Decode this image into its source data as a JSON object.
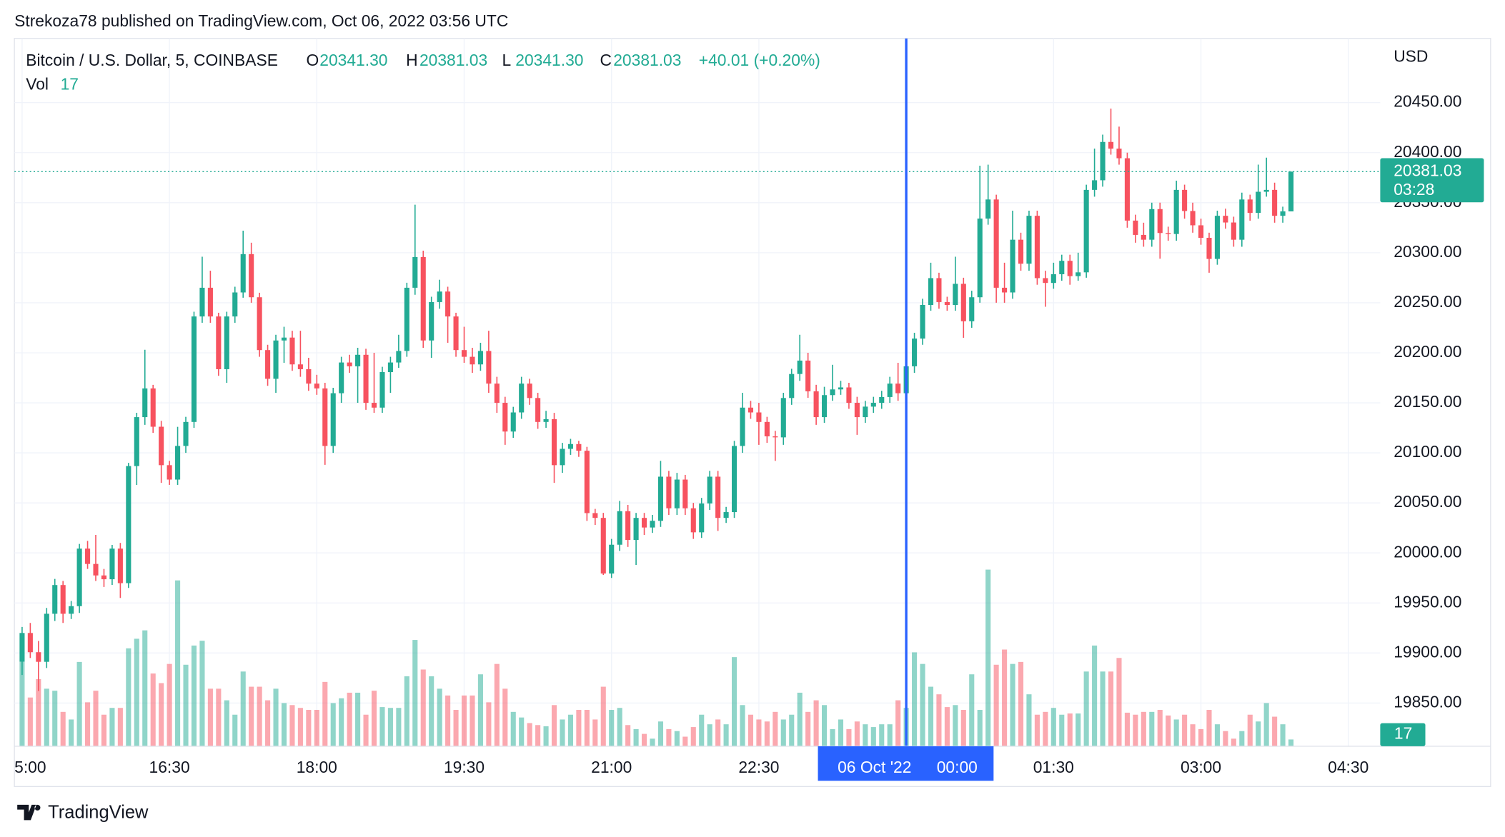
{
  "header": {
    "byline": "Strekoza78 published on TradingView.com, Oct 06, 2022 03:56 UTC"
  },
  "legend": {
    "symbol": "Bitcoin / U.S. Dollar, 5, COINBASE",
    "items": [
      {
        "key": "O",
        "value": "20341.30"
      },
      {
        "key": "H",
        "value": "20381.03"
      },
      {
        "key": "L",
        "value": "20341.30"
      },
      {
        "key": "C",
        "value": "20381.03"
      }
    ],
    "change": "+40.01 (+0.20%)",
    "vol_key": "Vol"
  },
  "footer": {
    "brand": "TradingView"
  },
  "chart_data": {
    "type": "candlestick",
    "currency": "USD",
    "up_color": "#22ab94",
    "down_color": "#f7525f",
    "grid": true,
    "xlim": [
      -0.94,
      165.9
    ],
    "ylim": [
      19806.8,
      20514.2
    ],
    "vol_ylim": [
      0,
      480
    ],
    "xticks": [
      {
        "value": 0,
        "label": "5:00"
      },
      {
        "value": 18,
        "label": "16:30"
      },
      {
        "value": 36,
        "label": "18:00"
      },
      {
        "value": 54,
        "label": "19:30"
      },
      {
        "value": 72,
        "label": "21:00"
      },
      {
        "value": 90,
        "label": "22:30"
      },
      {
        "value": 108,
        "label": "00:00"
      },
      {
        "value": 126,
        "label": "01:30"
      },
      {
        "value": 144,
        "label": "03:00"
      },
      {
        "value": 162,
        "label": "04:30"
      }
    ],
    "yticks": [
      {
        "value": 19850,
        "label": "19850.00"
      },
      {
        "value": 19900,
        "label": "19900.00"
      },
      {
        "value": 19950,
        "label": "19950.00"
      },
      {
        "value": 20000,
        "label": "20000.00"
      },
      {
        "value": 20050,
        "label": "20050.00"
      },
      {
        "value": 20100,
        "label": "20100.00"
      },
      {
        "value": 20150,
        "label": "20150.00"
      },
      {
        "value": 20200,
        "label": "20200.00"
      },
      {
        "value": 20250,
        "label": "20250.00"
      },
      {
        "value": 20300,
        "label": "20300.00"
      },
      {
        "value": 20350,
        "label": "20350.00"
      },
      {
        "value": 20400,
        "label": "20400.00"
      },
      {
        "value": 20450,
        "label": "20450.00"
      }
    ],
    "crosshair": {
      "x": 108,
      "date": "06 Oct '22",
      "tick": 6,
      "color": "#2962ff"
    },
    "last": {
      "value": 20381.03,
      "label": "20381.03",
      "countdown": "03:28"
    },
    "candles": [
      [
        19891.2,
        19926,
        19878,
        19920.0
      ],
      [
        19920.0,
        19930,
        19895,
        19900.8
      ],
      [
        19900.8,
        19912,
        19862,
        19891.2
      ],
      [
        19891.2,
        19945,
        19885,
        19939.2
      ],
      [
        19939.2,
        19974,
        19932,
        19967.9
      ],
      [
        19967.9,
        19972,
        19930,
        19939.2
      ],
      [
        19939.2,
        19952,
        19934,
        19946.8
      ],
      [
        19946.8,
        20009,
        19940,
        20004.3
      ],
      [
        20004.3,
        20012,
        19984,
        19989.0
      ],
      [
        19989.0,
        20018,
        19972,
        19977.5
      ],
      [
        19977.5,
        19984,
        19966,
        19973.7
      ],
      [
        19973.7,
        20008,
        19968,
        20004.3
      ],
      [
        20004.3,
        20010,
        19955,
        19969.8
      ],
      [
        19969.8,
        20090,
        19965,
        20086.8
      ],
      [
        20086.8,
        20140,
        20068,
        20135.7
      ],
      [
        20135.7,
        20203,
        20128,
        20164.4
      ],
      [
        20164.4,
        20168,
        20120,
        20126.1
      ],
      [
        20126.1,
        20132,
        20070,
        20087.7
      ],
      [
        20087.7,
        20092,
        20068,
        20073.3
      ],
      [
        20073.3,
        20126,
        20068,
        20106.9
      ],
      [
        20106.9,
        20136,
        20100,
        20130.9
      ],
      [
        20130.9,
        20241,
        20125,
        20236.3
      ],
      [
        20236.3,
        20296,
        20230,
        20265.0
      ],
      [
        20265.0,
        20282,
        20230,
        20236.3
      ],
      [
        20236.3,
        20240,
        20177,
        20183.6
      ],
      [
        20183.6,
        20241,
        20170,
        20236.3
      ],
      [
        20236.3,
        20266,
        20230,
        20260.3
      ],
      [
        20260.3,
        20322,
        20255,
        20298.6
      ],
      [
        20298.6,
        20310,
        20250,
        20255.5
      ],
      [
        20255.5,
        20260,
        20196,
        20202.7
      ],
      [
        20202.7,
        20208,
        20167,
        20174.0
      ],
      [
        20174.0,
        20218,
        20160,
        20212.3
      ],
      [
        20212.3,
        20226,
        20190,
        20215.2
      ],
      [
        20215.2,
        20222,
        20182,
        20188.4
      ],
      [
        20188.4,
        20222,
        20176,
        20183.6
      ],
      [
        20183.6,
        20195,
        20162,
        20169.2
      ],
      [
        20169.2,
        20178,
        20158,
        20164.4
      ],
      [
        20164.4,
        20170,
        20088,
        20106.9
      ],
      [
        20106.9,
        20165,
        20100,
        20159.6
      ],
      [
        20159.6,
        20196,
        20150,
        20190.3
      ],
      [
        20190.3,
        20198,
        20180,
        20186.5
      ],
      [
        20186.5,
        20205,
        20150,
        20198.0
      ],
      [
        20198.0,
        20204,
        20143,
        20150.0
      ],
      [
        20150.0,
        20200,
        20140,
        20145.2
      ],
      [
        20145.2,
        20186,
        20140,
        20180.7
      ],
      [
        20180.7,
        20196,
        20160,
        20190.3
      ],
      [
        20190.3,
        20218,
        20185,
        20201.8
      ],
      [
        20201.8,
        20270,
        20196,
        20265.0
      ],
      [
        20265.0,
        20348,
        20258,
        20295.7
      ],
      [
        20295.7,
        20302,
        20205,
        20212.3
      ],
      [
        20212.3,
        20256,
        20195,
        20250.7
      ],
      [
        20250.7,
        20273,
        20244,
        20261.2
      ],
      [
        20261.2,
        20266,
        20210,
        20236.3
      ],
      [
        20236.3,
        20240,
        20196,
        20202.7
      ],
      [
        20202.7,
        20226,
        20190,
        20196.0
      ],
      [
        20196.0,
        20205,
        20180,
        20188.4
      ],
      [
        20188.4,
        20210,
        20182,
        20201.8
      ],
      [
        20201.8,
        20222,
        20160,
        20169.2
      ],
      [
        20169.2,
        20176,
        20140,
        20150.0
      ],
      [
        20150.0,
        20156,
        20108,
        20121.3
      ],
      [
        20121.3,
        20146,
        20115,
        20140.4
      ],
      [
        20140.4,
        20176,
        20134,
        20169.2
      ],
      [
        20169.2,
        20174,
        20148,
        20154.8
      ],
      [
        20154.8,
        20160,
        20124,
        20130.9
      ],
      [
        20130.9,
        20142,
        20125,
        20133.7
      ],
      [
        20133.7,
        20140,
        20070,
        20087.7
      ],
      [
        20087.7,
        20110,
        20080,
        20104.0
      ],
      [
        20104.0,
        20114,
        20098,
        20108.8
      ],
      [
        20108.8,
        20112,
        20096,
        20102.1
      ],
      [
        20102.1,
        20106,
        20032,
        20039.8
      ],
      [
        20039.8,
        20044,
        20028,
        20035.0
      ],
      [
        20035.0,
        20040,
        19978,
        19979.4
      ],
      [
        19979.4,
        20014,
        19975,
        20008.2
      ],
      [
        20008.2,
        20052,
        20002,
        20041.7
      ],
      [
        20041.7,
        20048,
        20006,
        20013.0
      ],
      [
        20013.0,
        20040,
        19988,
        20035.0
      ],
      [
        20035.0,
        20040,
        20018,
        20025.4
      ],
      [
        20025.4,
        20038,
        20020,
        20032.1
      ],
      [
        20032.1,
        20092,
        20026,
        20076.2
      ],
      [
        20076.2,
        20082,
        20038,
        20044.6
      ],
      [
        20044.6,
        20080,
        20038,
        20073.3
      ],
      [
        20073.3,
        20078,
        20038,
        20044.6
      ],
      [
        20044.6,
        20050,
        20014,
        20020.6
      ],
      [
        20020.6,
        20055,
        20015,
        20049.4
      ],
      [
        20049.4,
        20082,
        20043,
        20076.2
      ],
      [
        20076.2,
        20082,
        20022,
        20035.0
      ],
      [
        20035.0,
        20046,
        20030,
        20040.8
      ],
      [
        20040.8,
        20112,
        20035,
        20106.9
      ],
      [
        20106.9,
        20160,
        20100,
        20145.2
      ],
      [
        20145.2,
        20152,
        20134,
        20140.4
      ],
      [
        20140.4,
        20150,
        20108,
        20130.9
      ],
      [
        20130.9,
        20136,
        20110,
        20116.5
      ],
      [
        20116.5,
        20122,
        20092,
        20115.5
      ],
      [
        20115.5,
        20160,
        20108,
        20154.8
      ],
      [
        20154.8,
        20184,
        20148,
        20178.8
      ],
      [
        20178.8,
        20218,
        20172,
        20192.2
      ],
      [
        20192.2,
        20200,
        20155,
        20161.5
      ],
      [
        20161.5,
        20168,
        20128,
        20135.7
      ],
      [
        20135.7,
        20166,
        20130,
        20157.7
      ],
      [
        20157.7,
        20188,
        20152,
        20163.4
      ],
      [
        20163.4,
        20172,
        20158,
        20165.4
      ],
      [
        20165.4,
        20170,
        20144,
        20150.0
      ],
      [
        20150.0,
        20156,
        20118,
        20135.7
      ],
      [
        20135.7,
        20152,
        20130,
        20146.2
      ],
      [
        20146.2,
        20156,
        20140,
        20150.0
      ],
      [
        20150.0,
        20162,
        20144,
        20155.8
      ],
      [
        20155.8,
        20176,
        20150,
        20169.2
      ],
      [
        20169.2,
        20190,
        20152,
        20159.6
      ],
      [
        20159.6,
        20192,
        20152,
        20186.5
      ],
      [
        20186.5,
        20220,
        20180,
        20214.2
      ],
      [
        20214.2,
        20254,
        20208,
        20247.8
      ],
      [
        20247.8,
        20290,
        20242,
        20274.6
      ],
      [
        20274.6,
        20280,
        20244,
        20250.7
      ],
      [
        20250.7,
        20256,
        20242,
        20247.8
      ],
      [
        20247.8,
        20296,
        20242,
        20268.9
      ],
      [
        20268.9,
        20275,
        20215,
        20231.5
      ],
      [
        20231.5,
        20262,
        20225,
        20255.5
      ],
      [
        20255.5,
        20387,
        20250,
        20334.1
      ],
      [
        20334.1,
        20388,
        20328,
        20353.2
      ],
      [
        20353.2,
        20358,
        20250,
        20265.0
      ],
      [
        20265.0,
        20290,
        20250,
        20260.3
      ],
      [
        20260.3,
        20342,
        20254,
        20313.0
      ],
      [
        20313.0,
        20320,
        20282,
        20289.0
      ],
      [
        20289.0,
        20342,
        20282,
        20336.9
      ],
      [
        20336.9,
        20342,
        20268,
        20274.6
      ],
      [
        20274.6,
        20282,
        20246,
        20269.8
      ],
      [
        20269.8,
        20290,
        20264,
        20278.5
      ],
      [
        20278.5,
        20298,
        20272,
        20291.9
      ],
      [
        20291.9,
        20298,
        20268,
        20276.6
      ],
      [
        20276.6,
        20300,
        20272,
        20280.4
      ],
      [
        20280.4,
        20368,
        20275,
        20362.8
      ],
      [
        20362.8,
        20404,
        20356,
        20372.4
      ],
      [
        20372.4,
        20418,
        20366,
        20410.7
      ],
      [
        20410.7,
        20444,
        20398,
        20404.0
      ],
      [
        20404.0,
        20426,
        20388,
        20394.4
      ],
      [
        20394.4,
        20400,
        20325,
        20332.1
      ],
      [
        20332.1,
        20338,
        20310,
        20317.8
      ],
      [
        20317.8,
        20330,
        20306,
        20313.0
      ],
      [
        20313.0,
        20350,
        20306,
        20343.6
      ],
      [
        20343.6,
        20350,
        20294,
        20319.7
      ],
      [
        20319.7,
        20326,
        20312,
        20318.7
      ],
      [
        20318.7,
        20372,
        20312,
        20362.8
      ],
      [
        20362.8,
        20368,
        20334,
        20341.7
      ],
      [
        20341.7,
        20350,
        20320,
        20327.4
      ],
      [
        20327.4,
        20334,
        20308,
        20314.9
      ],
      [
        20314.9,
        20320,
        20280,
        20293.8
      ],
      [
        20293.8,
        20342,
        20288,
        20336.9
      ],
      [
        20336.9,
        20344,
        20324,
        20330.2
      ],
      [
        20330.2,
        20336,
        20306,
        20313.0
      ],
      [
        20313.0,
        20360,
        20306,
        20353.2
      ],
      [
        20353.2,
        20358,
        20332,
        20339.8
      ],
      [
        20339.8,
        20388,
        20334,
        20360.9
      ],
      [
        20360.9,
        20395,
        20356,
        20362.8
      ],
      [
        20362.8,
        20370,
        20330,
        20336.9
      ],
      [
        20336.9,
        20346,
        20330,
        20341.3
      ],
      [
        20341.3,
        20381.03,
        20341.3,
        20381.03
      ]
    ],
    "volumes": [
      211,
      122,
      168,
      144,
      139,
      86,
      67,
      211,
      110,
      139,
      79,
      96,
      96,
      245,
      269,
      290,
      182,
      158,
      206,
      415,
      204,
      252,
      264,
      144,
      144,
      115,
      79,
      187,
      149,
      149,
      115,
      144,
      108,
      103,
      96,
      91,
      91,
      161,
      108,
      120,
      134,
      134,
      79,
      139,
      98,
      96,
      96,
      175,
      266,
      192,
      175,
      144,
      127,
      91,
      127,
      127,
      180,
      110,
      206,
      144,
      86,
      72,
      58,
      53,
      50,
      103,
      67,
      79,
      91,
      91,
      67,
      149,
      91,
      96,
      53,
      43,
      31,
      19,
      62,
      43,
      38,
      24,
      48,
      79,
      55,
      67,
      55,
      223,
      103,
      79,
      67,
      62,
      86,
      67,
      79,
      134,
      86,
      115,
      103,
      43,
      67,
      43,
      62,
      55,
      48,
      55,
      55,
      115,
      96,
      235,
      206,
      149,
      130,
      98,
      103,
      91,
      180,
      91,
      442,
      204,
      242,
      206,
      211,
      130,
      79,
      86,
      96,
      79,
      82,
      82,
      187,
      252,
      187,
      187,
      221,
      84,
      79,
      86,
      86,
      91,
      77,
      67,
      79,
      55,
      43,
      91,
      55,
      38,
      19,
      38,
      79,
      62,
      108,
      74,
      55,
      17
    ]
  }
}
